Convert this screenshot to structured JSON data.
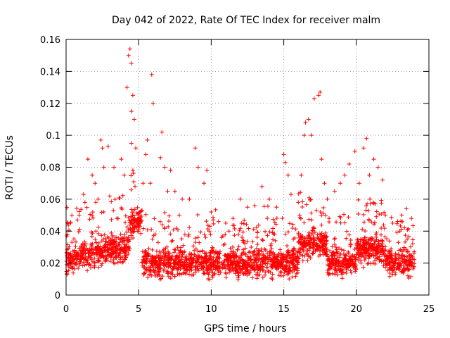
{
  "chart_data": {
    "type": "scatter",
    "title": "Day 042 of 2022, Rate Of TEC Index for receiver malm",
    "xlabel": "GPS time / hours",
    "ylabel": "ROTI / TECUs",
    "xlim": [
      0,
      25
    ],
    "ylim": [
      0,
      0.16
    ],
    "xticks": [
      "0",
      "5",
      "10",
      "15",
      "20",
      "25"
    ],
    "yticks": [
      "0",
      "0.02",
      "0.04",
      "0.06",
      "0.08",
      "0.1",
      "0.12",
      "0.14",
      "0.16"
    ],
    "grid": true,
    "marker": "plus",
    "color": "#ff0000",
    "series": [
      {
        "x": [
          0.3,
          0.4,
          0.9,
          1.2,
          1.3,
          1.5,
          1.8,
          2.0,
          2.2,
          2.4,
          2.5,
          2.6,
          2.6,
          2.9,
          3.0,
          3.3,
          3.5,
          3.8,
          4.0,
          4.2,
          4.3,
          4.4,
          4.5,
          4.5,
          4.5,
          4.6,
          4.6,
          4.7,
          4.8,
          5.3,
          5.5,
          5.6,
          5.8,
          5.9,
          6.0,
          6.5,
          6.6,
          6.8,
          7.0,
          7.2,
          7.5,
          7.8,
          8.0,
          8.5,
          8.9,
          9.1,
          9.5,
          9.7,
          10.0,
          10.5,
          11.0,
          11.5,
          12.0,
          12.5,
          13.0,
          13.5,
          14.0,
          14.5,
          15.0,
          15.1,
          15.3,
          15.5,
          16.0,
          16.2,
          16.4,
          16.5,
          16.7,
          16.9,
          17.1,
          17.4,
          17.5,
          17.6,
          17.8,
          18.0,
          18.5,
          18.9,
          19.2,
          19.5,
          19.9,
          20.2,
          20.5,
          20.7,
          20.9,
          21.2,
          21.5,
          21.8,
          22.0,
          22.5,
          23.0,
          23.5,
          23.8
        ],
        "y": [
          0.045,
          0.033,
          0.05,
          0.063,
          0.058,
          0.085,
          0.075,
          0.07,
          0.06,
          0.097,
          0.092,
          0.08,
          0.052,
          0.093,
          0.062,
          0.08,
          0.048,
          0.085,
          0.075,
          0.13,
          0.15,
          0.154,
          0.145,
          0.115,
          0.095,
          0.125,
          0.078,
          0.11,
          0.092,
          0.07,
          0.088,
          0.097,
          0.07,
          0.138,
          0.12,
          0.086,
          0.102,
          0.08,
          0.065,
          0.078,
          0.065,
          0.05,
          0.06,
          0.06,
          0.092,
          0.08,
          0.07,
          0.078,
          0.052,
          0.046,
          0.045,
          0.048,
          0.06,
          0.055,
          0.056,
          0.068,
          0.06,
          0.055,
          0.088,
          0.083,
          0.075,
          0.063,
          0.058,
          0.075,
          0.1,
          0.108,
          0.11,
          0.1,
          0.123,
          0.125,
          0.127,
          0.085,
          0.07,
          0.06,
          0.065,
          0.07,
          0.075,
          0.082,
          0.09,
          0.07,
          0.092,
          0.098,
          0.075,
          0.085,
          0.08,
          0.072,
          0.05,
          0.045,
          0.04,
          0.035,
          0.048
        ]
      }
    ]
  }
}
